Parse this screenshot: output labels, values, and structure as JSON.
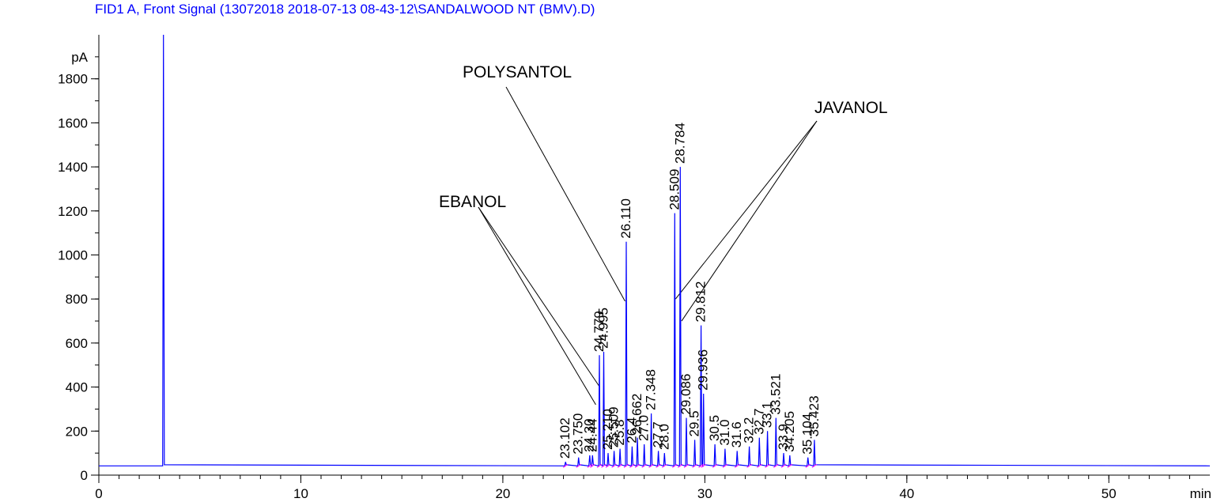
{
  "chart_data": {
    "type": "line",
    "title": "FID1 A, Front Signal (13072018 2018-07-13 08-43-12\\SANDALWOOD NT (BMV).D)",
    "ylabel": "pA",
    "xlabel": "min",
    "xlim": [
      0,
      55
    ],
    "ylim": [
      0,
      2000
    ],
    "x_ticks": [
      "0",
      "10",
      "20",
      "30",
      "40",
      "50"
    ],
    "y_ticks": [
      "0",
      "200",
      "400",
      "600",
      "800",
      "1000",
      "1200",
      "1400",
      "1600",
      "1800"
    ],
    "baseline": 42,
    "colors": {
      "signal": "#0000ff",
      "baseline_marks": "#ff00ff",
      "axis": "#000000"
    },
    "series": [
      {
        "peaks": [
          {
            "x": 3.2,
            "y": 2000,
            "label": ""
          },
          {
            "x": 23.102,
            "y": 60,
            "label": "23.102"
          },
          {
            "x": 23.75,
            "y": 80,
            "label": "23.750"
          },
          {
            "x": 24.3,
            "y": 90,
            "label": "24.30"
          },
          {
            "x": 24.44,
            "y": 90,
            "label": "24.44"
          },
          {
            "x": 24.779,
            "y": 545,
            "label": "24.779"
          },
          {
            "x": 24.995,
            "y": 560,
            "label": "24.995"
          },
          {
            "x": 25.21,
            "y": 100,
            "label": "25.210"
          },
          {
            "x": 25.509,
            "y": 110,
            "label": "25.509"
          },
          {
            "x": 25.8,
            "y": 120,
            "label": "25.8"
          },
          {
            "x": 26.11,
            "y": 1060,
            "label": "26.110"
          },
          {
            "x": 26.4,
            "y": 130,
            "label": "26.4"
          },
          {
            "x": 26.662,
            "y": 170,
            "label": "26.662"
          },
          {
            "x": 27.0,
            "y": 140,
            "label": "27.0"
          },
          {
            "x": 27.348,
            "y": 280,
            "label": "27.348"
          },
          {
            "x": 27.7,
            "y": 110,
            "label": "27.7"
          },
          {
            "x": 28.0,
            "y": 100,
            "label": "28.0"
          },
          {
            "x": 28.509,
            "y": 1190,
            "label": "28.509"
          },
          {
            "x": 28.784,
            "y": 1400,
            "label": "28.784"
          },
          {
            "x": 29.086,
            "y": 260,
            "label": "29.086"
          },
          {
            "x": 29.5,
            "y": 160,
            "label": "29.5"
          },
          {
            "x": 29.812,
            "y": 680,
            "label": "29.812"
          },
          {
            "x": 29.936,
            "y": 370,
            "label": "29.936"
          },
          {
            "x": 30.5,
            "y": 140,
            "label": "30.5"
          },
          {
            "x": 31.0,
            "y": 120,
            "label": "31.0"
          },
          {
            "x": 31.6,
            "y": 110,
            "label": "31.6"
          },
          {
            "x": 32.2,
            "y": 130,
            "label": "32.2"
          },
          {
            "x": 32.7,
            "y": 170,
            "label": "32.7"
          },
          {
            "x": 33.1,
            "y": 200,
            "label": "33.1"
          },
          {
            "x": 33.521,
            "y": 260,
            "label": "33.521"
          },
          {
            "x": 33.9,
            "y": 100,
            "label": "33.9"
          },
          {
            "x": 34.205,
            "y": 90,
            "label": "34.205"
          },
          {
            "x": 35.104,
            "y": 80,
            "label": "35.104"
          },
          {
            "x": 35.423,
            "y": 160,
            "label": "35.423"
          }
        ]
      }
    ],
    "annotations": [
      {
        "text": "EBANOL",
        "targets": [
          {
            "x": 24.6,
            "y": 320
          },
          {
            "x": 24.8,
            "y": 400
          }
        ]
      },
      {
        "text": "POLYSANTOL",
        "targets": [
          {
            "x": 26.05,
            "y": 790
          }
        ]
      },
      {
        "text": "JAVANOL",
        "targets": [
          {
            "x": 28.55,
            "y": 800
          },
          {
            "x": 28.85,
            "y": 700
          }
        ]
      }
    ]
  }
}
